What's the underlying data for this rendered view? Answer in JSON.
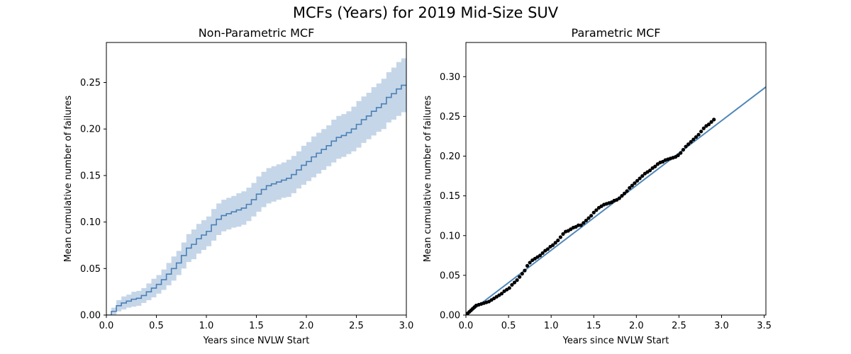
{
  "figure": {
    "suptitle": "MCFs (Years) for 2019 Mid-Size SUV"
  },
  "colors": {
    "line": "#4a7fb5",
    "band": "#c5d6e8",
    "fit": "#4f87b8",
    "points": "#000000"
  },
  "chart_data": [
    {
      "type": "line",
      "title": "Non-Parametric MCF",
      "xlabel": "Years since NVLW Start",
      "ylabel": "Mean cumulative number of failures",
      "xlim": [
        0.0,
        3.0
      ],
      "ylim": [
        0.0,
        0.293
      ],
      "xticks": [
        "0.0",
        "0.5",
        "1.0",
        "1.5",
        "2.0",
        "2.5",
        "3.0"
      ],
      "yticks": [
        "0.00",
        "0.05",
        "0.10",
        "0.15",
        "0.20",
        "0.25"
      ],
      "grid": false,
      "series": [
        {
          "kind": "step",
          "x": [
            0.0,
            0.05,
            0.1,
            0.15,
            0.2,
            0.25,
            0.3,
            0.35,
            0.4,
            0.45,
            0.5,
            0.55,
            0.6,
            0.65,
            0.7,
            0.75,
            0.8,
            0.85,
            0.9,
            0.95,
            1.0,
            1.05,
            1.1,
            1.15,
            1.2,
            1.25,
            1.3,
            1.35,
            1.4,
            1.45,
            1.5,
            1.55,
            1.6,
            1.65,
            1.7,
            1.75,
            1.8,
            1.85,
            1.9,
            1.95,
            2.0,
            2.05,
            2.1,
            2.15,
            2.2,
            2.25,
            2.3,
            2.35,
            2.4,
            2.45,
            2.5,
            2.55,
            2.6,
            2.65,
            2.7,
            2.75,
            2.8,
            2.85,
            2.9,
            2.95,
            3.0
          ],
          "y": [
            0.0,
            0.004,
            0.01,
            0.013,
            0.015,
            0.017,
            0.018,
            0.021,
            0.025,
            0.029,
            0.033,
            0.038,
            0.044,
            0.05,
            0.056,
            0.064,
            0.072,
            0.076,
            0.082,
            0.086,
            0.09,
            0.097,
            0.103,
            0.107,
            0.109,
            0.111,
            0.113,
            0.115,
            0.119,
            0.124,
            0.13,
            0.135,
            0.139,
            0.141,
            0.143,
            0.145,
            0.147,
            0.151,
            0.156,
            0.161,
            0.165,
            0.17,
            0.174,
            0.178,
            0.182,
            0.187,
            0.191,
            0.193,
            0.196,
            0.2,
            0.205,
            0.21,
            0.214,
            0.219,
            0.223,
            0.227,
            0.234,
            0.238,
            0.243,
            0.247,
            0.247
          ],
          "lower": [
            0.0,
            0.0,
            0.004,
            0.006,
            0.008,
            0.009,
            0.01,
            0.013,
            0.016,
            0.019,
            0.023,
            0.027,
            0.032,
            0.037,
            0.043,
            0.05,
            0.057,
            0.06,
            0.066,
            0.07,
            0.074,
            0.08,
            0.086,
            0.09,
            0.092,
            0.094,
            0.095,
            0.097,
            0.101,
            0.106,
            0.111,
            0.116,
            0.12,
            0.122,
            0.124,
            0.126,
            0.127,
            0.131,
            0.136,
            0.14,
            0.144,
            0.148,
            0.152,
            0.156,
            0.16,
            0.164,
            0.168,
            0.17,
            0.173,
            0.176,
            0.18,
            0.185,
            0.189,
            0.193,
            0.197,
            0.2,
            0.207,
            0.21,
            0.214,
            0.218,
            0.218
          ],
          "upper": [
            0.0,
            0.008,
            0.016,
            0.02,
            0.022,
            0.025,
            0.026,
            0.029,
            0.034,
            0.039,
            0.043,
            0.049,
            0.056,
            0.063,
            0.069,
            0.078,
            0.087,
            0.092,
            0.098,
            0.102,
            0.106,
            0.114,
            0.12,
            0.124,
            0.126,
            0.128,
            0.131,
            0.133,
            0.137,
            0.142,
            0.149,
            0.154,
            0.158,
            0.16,
            0.162,
            0.164,
            0.167,
            0.171,
            0.176,
            0.182,
            0.186,
            0.192,
            0.196,
            0.2,
            0.204,
            0.21,
            0.214,
            0.216,
            0.219,
            0.224,
            0.23,
            0.235,
            0.239,
            0.245,
            0.249,
            0.254,
            0.261,
            0.266,
            0.272,
            0.276,
            0.278
          ]
        }
      ]
    },
    {
      "type": "scatter",
      "title": "Parametric MCF",
      "xlabel": "Years since NVLW Start",
      "ylabel": "Mean cumulative number of failures",
      "xlim": [
        0.0,
        3.52
      ],
      "ylim": [
        0.0,
        0.343
      ],
      "xticks": [
        "0.0",
        "0.5",
        "1.0",
        "1.5",
        "2.0",
        "2.5",
        "3.0",
        "3.5"
      ],
      "yticks": [
        "0.00",
        "0.05",
        "0.10",
        "0.15",
        "0.20",
        "0.25",
        "0.30"
      ],
      "grid": false,
      "series": [
        {
          "kind": "fit-line",
          "x": [
            0.0,
            3.52
          ],
          "y": [
            0.0,
            0.287
          ]
        },
        {
          "kind": "points",
          "x": [
            0.02,
            0.04,
            0.06,
            0.08,
            0.1,
            0.12,
            0.15,
            0.18,
            0.21,
            0.24,
            0.27,
            0.3,
            0.33,
            0.36,
            0.39,
            0.42,
            0.45,
            0.48,
            0.51,
            0.54,
            0.57,
            0.6,
            0.63,
            0.66,
            0.69,
            0.72,
            0.75,
            0.78,
            0.81,
            0.84,
            0.87,
            0.9,
            0.93,
            0.96,
            0.99,
            1.02,
            1.05,
            1.08,
            1.11,
            1.14,
            1.17,
            1.2,
            1.23,
            1.26,
            1.29,
            1.32,
            1.35,
            1.38,
            1.41,
            1.44,
            1.47,
            1.5,
            1.53,
            1.56,
            1.59,
            1.62,
            1.65,
            1.68,
            1.71,
            1.74,
            1.77,
            1.8,
            1.83,
            1.86,
            1.89,
            1.92,
            1.95,
            1.98,
            2.01,
            2.04,
            2.07,
            2.1,
            2.13,
            2.16,
            2.19,
            2.22,
            2.25,
            2.28,
            2.31,
            2.34,
            2.37,
            2.4,
            2.43,
            2.46,
            2.49,
            2.52,
            2.55,
            2.58,
            2.61,
            2.64,
            2.67,
            2.7,
            2.73,
            2.76,
            2.79,
            2.82,
            2.85,
            2.88,
            2.91
          ],
          "y": [
            0.002,
            0.004,
            0.006,
            0.008,
            0.01,
            0.012,
            0.013,
            0.014,
            0.015,
            0.016,
            0.017,
            0.019,
            0.021,
            0.023,
            0.025,
            0.027,
            0.03,
            0.032,
            0.034,
            0.038,
            0.041,
            0.044,
            0.048,
            0.052,
            0.056,
            0.062,
            0.066,
            0.069,
            0.071,
            0.073,
            0.075,
            0.078,
            0.081,
            0.083,
            0.086,
            0.088,
            0.091,
            0.094,
            0.098,
            0.102,
            0.105,
            0.106,
            0.108,
            0.11,
            0.111,
            0.113,
            0.113,
            0.116,
            0.119,
            0.122,
            0.125,
            0.129,
            0.132,
            0.135,
            0.137,
            0.139,
            0.14,
            0.141,
            0.142,
            0.144,
            0.145,
            0.147,
            0.15,
            0.153,
            0.156,
            0.16,
            0.163,
            0.166,
            0.169,
            0.172,
            0.175,
            0.178,
            0.18,
            0.182,
            0.185,
            0.187,
            0.19,
            0.192,
            0.193,
            0.195,
            0.196,
            0.197,
            0.198,
            0.199,
            0.201,
            0.204,
            0.208,
            0.212,
            0.215,
            0.218,
            0.221,
            0.224,
            0.227,
            0.231,
            0.235,
            0.238,
            0.24,
            0.243,
            0.246
          ]
        }
      ]
    }
  ]
}
